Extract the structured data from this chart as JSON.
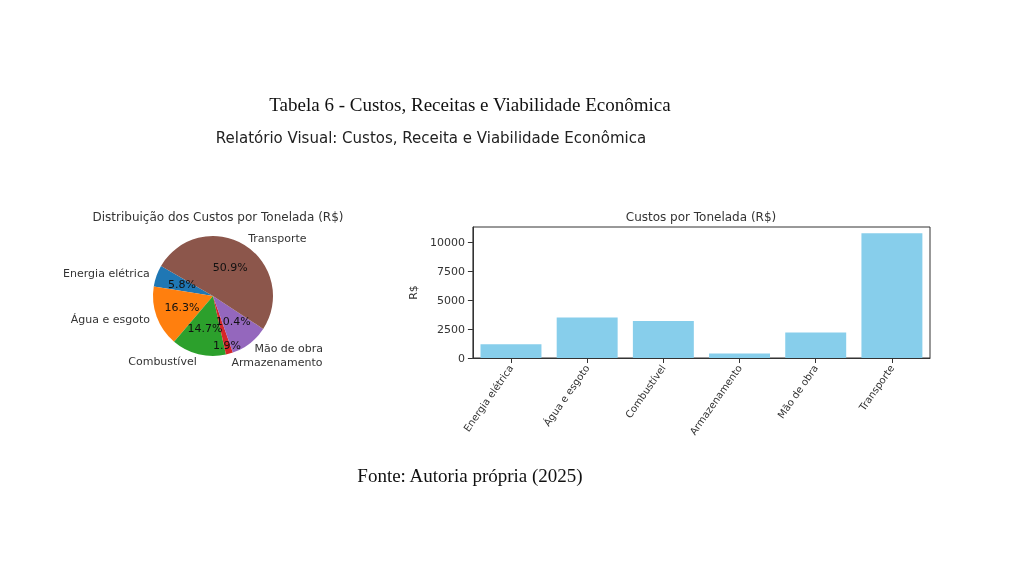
{
  "chart_data": [
    {
      "type": "other",
      "title": "Tabela 6 -  Custos, Receitas e Viabilidade Econômica",
      "subtitle": "Relatório Visual: Custos, Receita e Viabilidade Econômica",
      "annotations": [
        "Fonte: Autoria própria (2025)"
      ]
    },
    {
      "type": "pie",
      "title": "Distribuição dos Custos por Tonelada (R$)",
      "categories": [
        "Energia elétrica",
        "Água e esgoto",
        "Combustível",
        "Armazenamento",
        "Mão de obra",
        "Transporte"
      ],
      "values": [
        5.8,
        16.3,
        14.7,
        1.9,
        10.4,
        50.9
      ],
      "value_labels": [
        "5.8%",
        "16.3%",
        "14.7%",
        "1.9%",
        "10.4%",
        "50.9%"
      ],
      "colors": [
        "#1f77b4",
        "#ff7f0e",
        "#2ca02c",
        "#d62728",
        "#9467bd",
        "#8c564b"
      ]
    },
    {
      "type": "bar",
      "title": "Custos por Tonelada (R$)",
      "ylabel": "R$",
      "categories": [
        "Energia elétrica",
        "Água e esgoto",
        "Combustível",
        "Armazenamento",
        "Mão de obra",
        "Transporte"
      ],
      "values": [
        1200,
        3500,
        3200,
        400,
        2200,
        10800
      ],
      "color": "#87ceeb",
      "ylim": [
        0,
        11350
      ],
      "yticks": [
        0,
        2500,
        5000,
        7500,
        10000
      ]
    }
  ]
}
